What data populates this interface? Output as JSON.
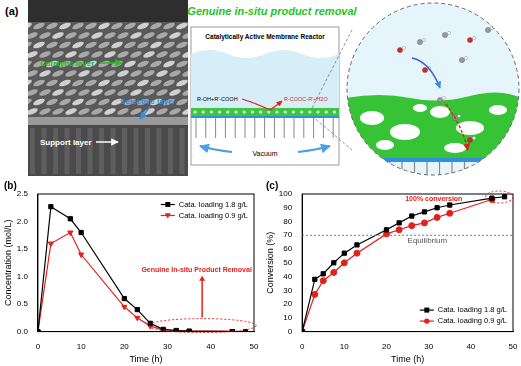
{
  "diagram": {
    "panel_label": "(a)",
    "title": "Genuine in-situ product removal",
    "sem_labels": {
      "catalytic": "Catalytic layer",
      "selective": "Selective layer",
      "support": "Support layer"
    },
    "reactor": {
      "title": "Catalytically Active Membrane Reactor",
      "reactants": "R-OH+R'-COOH",
      "products": "R-COOC-R'+H2O",
      "vacuum": "Vacuum"
    }
  },
  "chart_data": [
    {
      "type": "line",
      "title": "(b)",
      "x_label": "Time (h)",
      "y_label": "Concentration (mol/L)",
      "xlim": [
        0,
        50
      ],
      "xticks": [
        0,
        10,
        20,
        30,
        40,
        50
      ],
      "ylim": [
        0,
        2.5
      ],
      "yticks": [
        {
          "value": 0,
          "label": "0.0"
        },
        0.5,
        {
          "value": 1,
          "label": "1.0"
        },
        1.5,
        {
          "value": 2,
          "label": "2.0"
        },
        2.5
      ],
      "grid": false,
      "legend": "upper right",
      "annotation": "Genuine In-situ Product Removal",
      "series": [
        {
          "name": "Cata. loading 1.8 g/L",
          "color": "#000000",
          "marker": "square",
          "line_style": "solid",
          "x": [
            0,
            3,
            7.5,
            10,
            20,
            23,
            26,
            29,
            32,
            35,
            45,
            48
          ],
          "values": [
            0,
            2.27,
            2.05,
            1.8,
            0.6,
            0.4,
            0.15,
            0.04,
            0.02,
            0.01,
            0,
            0
          ]
        },
        {
          "name": "Cata. loading 0.9 g/L",
          "color": "#e3211c",
          "marker": "triangle_down",
          "line_style": "solid",
          "x": [
            0,
            3,
            7.5,
            10,
            20,
            23,
            26,
            29,
            32,
            35,
            45
          ],
          "values": [
            0,
            1.6,
            1.8,
            1.4,
            0.45,
            0.25,
            0.1,
            0.03,
            0.02,
            0.01,
            0.01
          ]
        }
      ]
    },
    {
      "type": "line",
      "title": "(c)",
      "x_label": "Time (h)",
      "y_label": "Conversion (%)",
      "xlim": [
        0,
        50
      ],
      "xticks": [
        0,
        10,
        20,
        30,
        40,
        50
      ],
      "ylim": [
        0,
        100
      ],
      "yticks": [
        0,
        10,
        20,
        30,
        40,
        50,
        60,
        70,
        80,
        90,
        100
      ],
      "grid": false,
      "legend": "lower right",
      "annotation": "100% conversion",
      "reference_line": {
        "value": 70,
        "label": "Equilibrium"
      },
      "series": [
        {
          "name": "Cata. loading 1.8 g/L",
          "color": "#000000",
          "marker": "square",
          "line_style": "solid",
          "x": [
            0,
            3,
            5,
            7.5,
            10,
            13,
            20,
            23,
            26,
            29,
            32,
            35,
            45,
            48
          ],
          "values": [
            0,
            38,
            42,
            50,
            57,
            63,
            74,
            79,
            84,
            87,
            90,
            92,
            97,
            98
          ]
        },
        {
          "name": "Cata. loading 0.9 g/L",
          "color": "#e3211c",
          "marker": "circle",
          "line_style": "solid",
          "x": [
            0,
            3,
            5,
            7.5,
            10,
            13,
            20,
            23,
            26,
            29,
            32,
            35,
            45
          ],
          "values": [
            0,
            27,
            37,
            43,
            50,
            57,
            71,
            74,
            77,
            79,
            83,
            86,
            96
          ]
        }
      ]
    }
  ]
}
